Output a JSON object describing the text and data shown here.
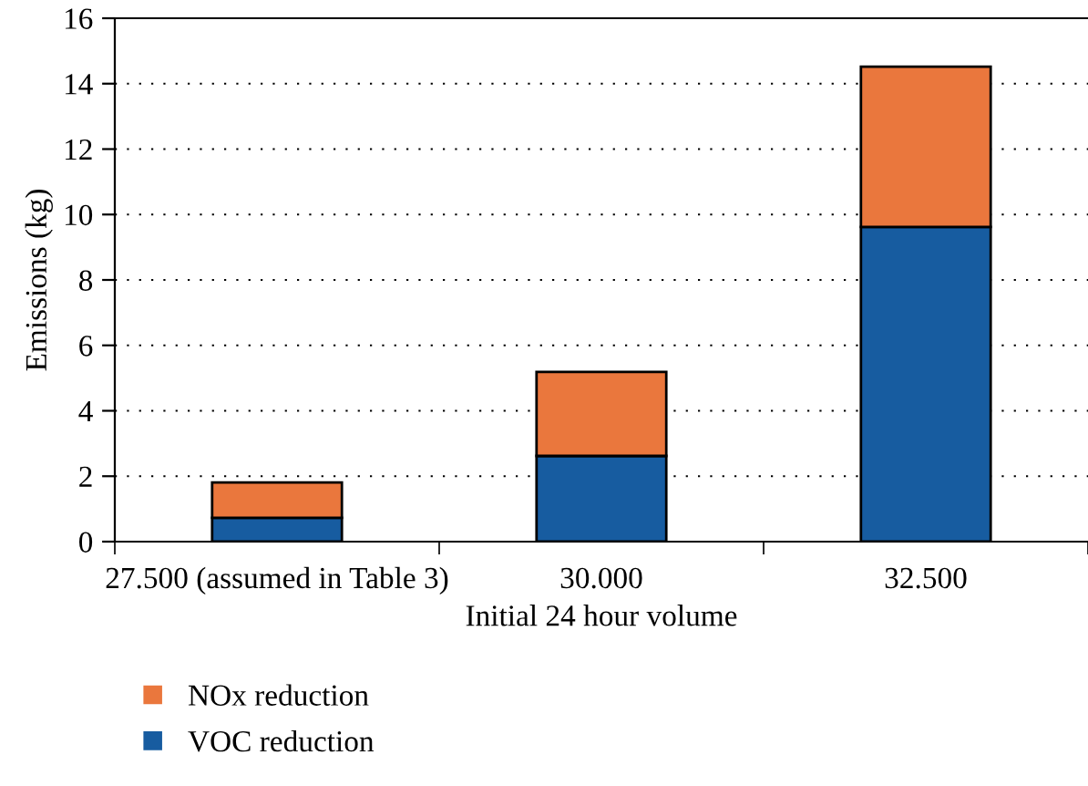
{
  "chart_data": {
    "type": "bar",
    "stacked": true,
    "xlabel": "Initial 24 hour volume",
    "ylabel": "Emissions (kg)",
    "categories": [
      "27.500 (assumed in Table 3)",
      "30.000",
      "32.500"
    ],
    "series": [
      {
        "name": "VOC reduction",
        "color": "#175ca0",
        "values": [
          0.73,
          2.62,
          9.62
        ]
      },
      {
        "name": "NOx reduction",
        "color": "#ea773d",
        "values": [
          1.08,
          2.57,
          4.9
        ]
      }
    ],
    "ylim": [
      0,
      16
    ],
    "yticks": [
      0,
      2,
      4,
      6,
      8,
      10,
      12,
      14,
      16
    ],
    "grid": "y",
    "legend": "bottom"
  }
}
